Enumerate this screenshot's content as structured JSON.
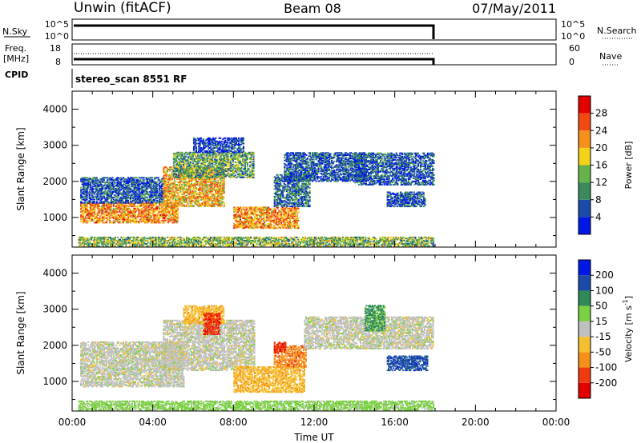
{
  "header": {
    "station": "Unwin (fitACF)",
    "beam": "Beam 08",
    "date": "07/May/2011"
  },
  "aux_panels": {
    "nsky_label": "N.Sky",
    "nsky_ticks": [
      "10^5",
      "10^0"
    ],
    "nsearch_label": "N.Search",
    "freq_label_1": "Freq.",
    "freq_label_2": "[MHz]",
    "freq_ticks": [
      "18",
      "8"
    ],
    "nave_label": "Nave",
    "nave_ticks": [
      "60",
      "0"
    ],
    "cpid_label": "CPID",
    "cpid_value": "stereo_scan 8551 RF"
  },
  "colors": {
    "power_scale": [
      "#0018e6",
      "#1c4aa8",
      "#3a8a5e",
      "#66b34c",
      "#f2d21a",
      "#f5901a",
      "#f04a12",
      "#e40000"
    ],
    "velocity_scale": [
      "#e40000",
      "#f03a10",
      "#f5901a",
      "#f5c030",
      "#c0c0c0",
      "#7ad040",
      "#2f8a58",
      "#1c4aa8",
      "#0018e6"
    ]
  },
  "chart_data": [
    {
      "type": "heatmap",
      "title": "",
      "xlabel": "",
      "ylabel": "Slant Range [km]",
      "colorbar_label": "Power [dB]",
      "colorbar_ticks": [
        "4",
        "8",
        "12",
        "16",
        "20",
        "24",
        "28"
      ],
      "colorbar_range": [
        0,
        32
      ],
      "xlim": [
        0,
        24
      ],
      "ylim": [
        180,
        4500
      ],
      "y_ticks": [
        "1000",
        "2000",
        "3000",
        "4000"
      ],
      "x_ticks": [
        "00:00",
        "04:00",
        "08:00",
        "12:00",
        "16:00",
        "20:00",
        "00:00"
      ],
      "data_end_hour": 18,
      "regions": [
        {
          "t0": 0.4,
          "t1": 5.2,
          "r0": 850,
          "r1": 1400,
          "value": 22
        },
        {
          "t0": 0.4,
          "t1": 4.5,
          "r0": 1400,
          "r1": 2100,
          "value": 6
        },
        {
          "t0": 4.5,
          "t1": 7.5,
          "r0": 1300,
          "r1": 2400,
          "value": 20
        },
        {
          "t0": 5.0,
          "t1": 9.0,
          "r0": 2100,
          "r1": 2800,
          "value": 12
        },
        {
          "t0": 6.0,
          "t1": 8.5,
          "r0": 2800,
          "r1": 3200,
          "value": 4
        },
        {
          "t0": 8.0,
          "t1": 11.2,
          "r0": 700,
          "r1": 1300,
          "value": 22
        },
        {
          "t0": 10.0,
          "t1": 11.8,
          "r0": 1300,
          "r1": 2200,
          "value": 8
        },
        {
          "t0": 10.5,
          "t1": 14.5,
          "r0": 2000,
          "r1": 2800,
          "value": 6
        },
        {
          "t0": 14.0,
          "t1": 17.9,
          "r0": 1900,
          "r1": 2800,
          "value": 6
        },
        {
          "t0": 15.6,
          "t1": 17.5,
          "r0": 1300,
          "r1": 1700,
          "value": 6
        },
        {
          "t0": 0.3,
          "t1": 17.9,
          "r0": 200,
          "r1": 450,
          "value": 14
        }
      ]
    },
    {
      "type": "heatmap",
      "title": "",
      "xlabel": "Time UT",
      "ylabel": "Slant Range [km]",
      "colorbar_label": "Velocity [m s^-1]",
      "colorbar_ticks": [
        "-200",
        "-100",
        "-50",
        "-15",
        "15",
        "50",
        "100",
        "200"
      ],
      "colorbar_range": [
        -250,
        250
      ],
      "xlim": [
        0,
        24
      ],
      "ylim": [
        180,
        4500
      ],
      "y_ticks": [
        "1000",
        "2000",
        "3000",
        "4000"
      ],
      "x_ticks": [
        "00:00",
        "04:00",
        "08:00",
        "12:00",
        "16:00",
        "20:00",
        "00:00"
      ],
      "data_end_hour": 18,
      "regions": [
        {
          "t0": 0.4,
          "t1": 5.5,
          "r0": 850,
          "r1": 2100,
          "value": 0
        },
        {
          "t0": 4.5,
          "t1": 9.0,
          "r0": 1300,
          "r1": 2700,
          "value": 0
        },
        {
          "t0": 5.5,
          "t1": 7.5,
          "r0": 2600,
          "r1": 3100,
          "value": -40
        },
        {
          "t0": 6.5,
          "t1": 7.3,
          "r0": 2300,
          "r1": 2900,
          "value": -180
        },
        {
          "t0": 8.0,
          "t1": 11.5,
          "r0": 700,
          "r1": 1400,
          "value": -40
        },
        {
          "t0": 10.0,
          "t1": 11.6,
          "r0": 1400,
          "r1": 2000,
          "value": -90
        },
        {
          "t0": 10.0,
          "t1": 10.6,
          "r0": 1800,
          "r1": 2100,
          "value": -180
        },
        {
          "t0": 11.5,
          "t1": 17.9,
          "r0": 1900,
          "r1": 2800,
          "value": 0
        },
        {
          "t0": 14.5,
          "t1": 15.5,
          "r0": 2400,
          "r1": 3100,
          "value": 60
        },
        {
          "t0": 15.6,
          "t1": 17.6,
          "r0": 1300,
          "r1": 1700,
          "value": 150
        },
        {
          "t0": 0.3,
          "t1": 17.9,
          "r0": 200,
          "r1": 450,
          "value": 30
        }
      ]
    }
  ]
}
